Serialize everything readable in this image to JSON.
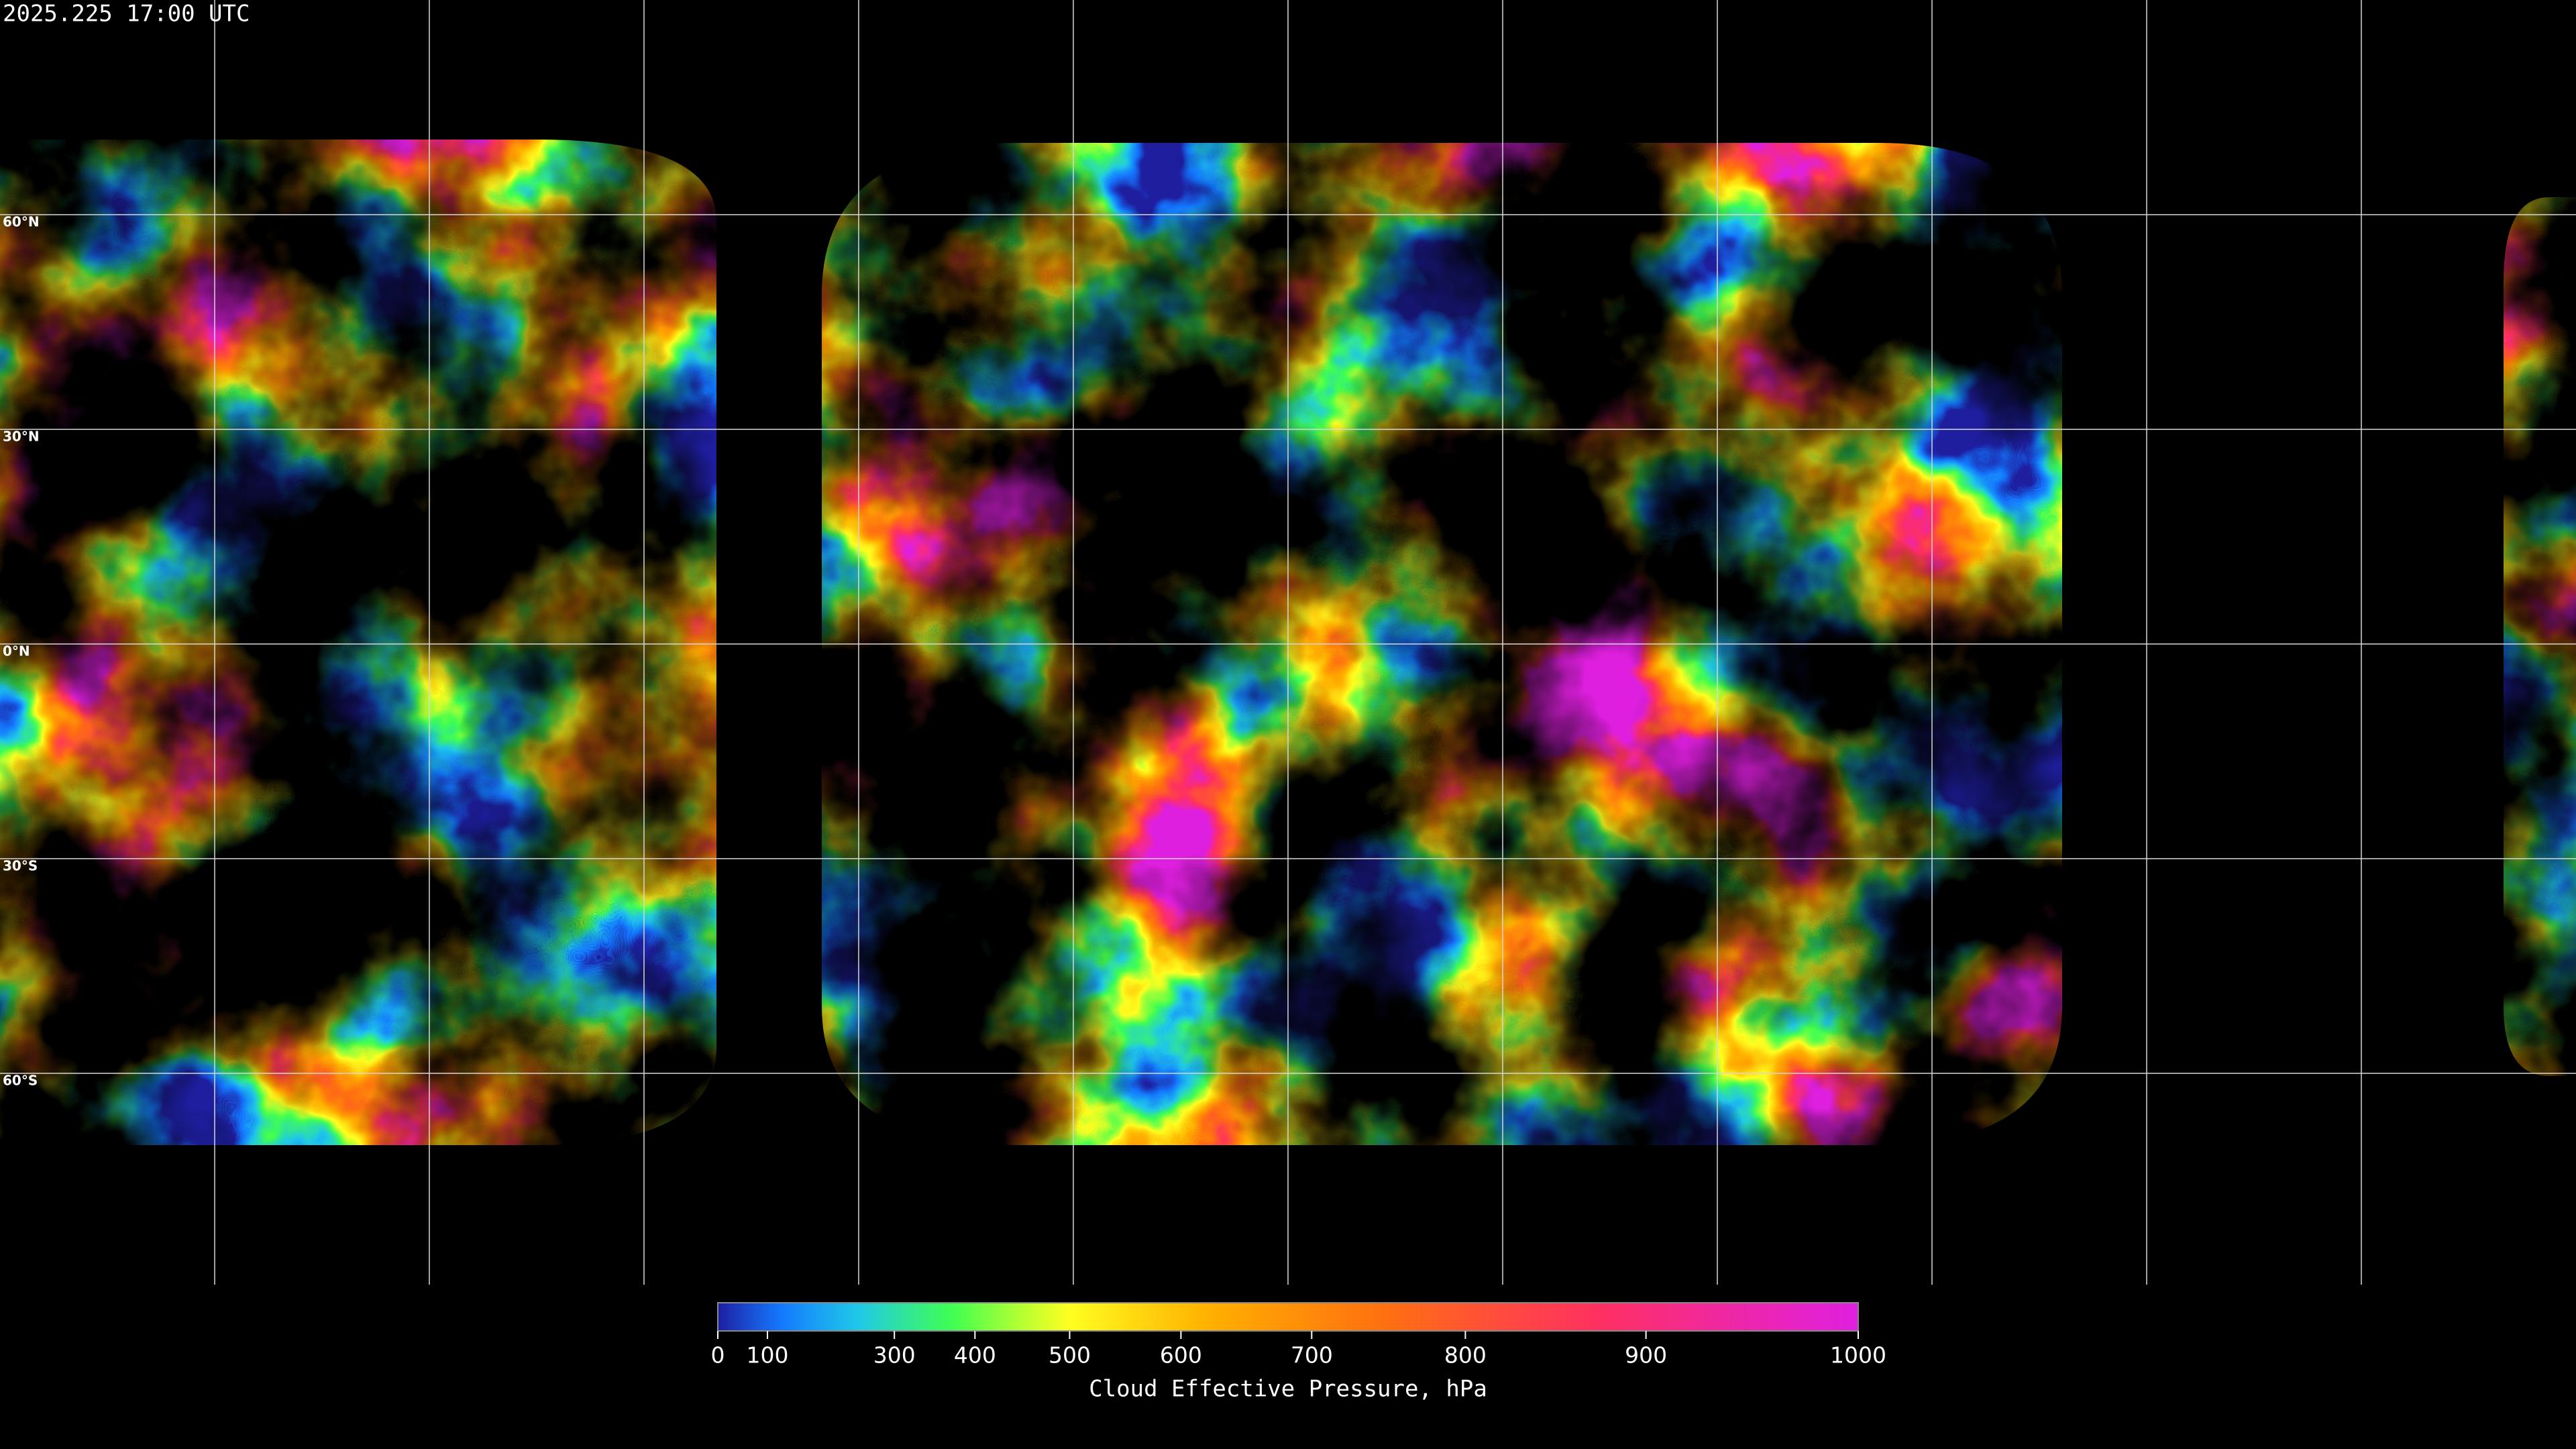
{
  "timestamp": "2025.225 17:00 UTC",
  "map": {
    "latitude_labels": [
      "60°N",
      "30°N",
      "0°N",
      "30°S",
      "60°S"
    ]
  },
  "colorbar": {
    "title": "Cloud Effective Pressure, hPa",
    "lim": [
      0,
      1000
    ],
    "ticks": [
      0,
      100,
      300,
      400,
      500,
      600,
      700,
      800,
      900,
      1000
    ],
    "colors": [
      "#1e1ea0",
      "#1478ff",
      "#20c8e8",
      "#40ff50",
      "#ffff20",
      "#ffb000",
      "#ff7010",
      "#ff3060",
      "#e020e0"
    ]
  }
}
